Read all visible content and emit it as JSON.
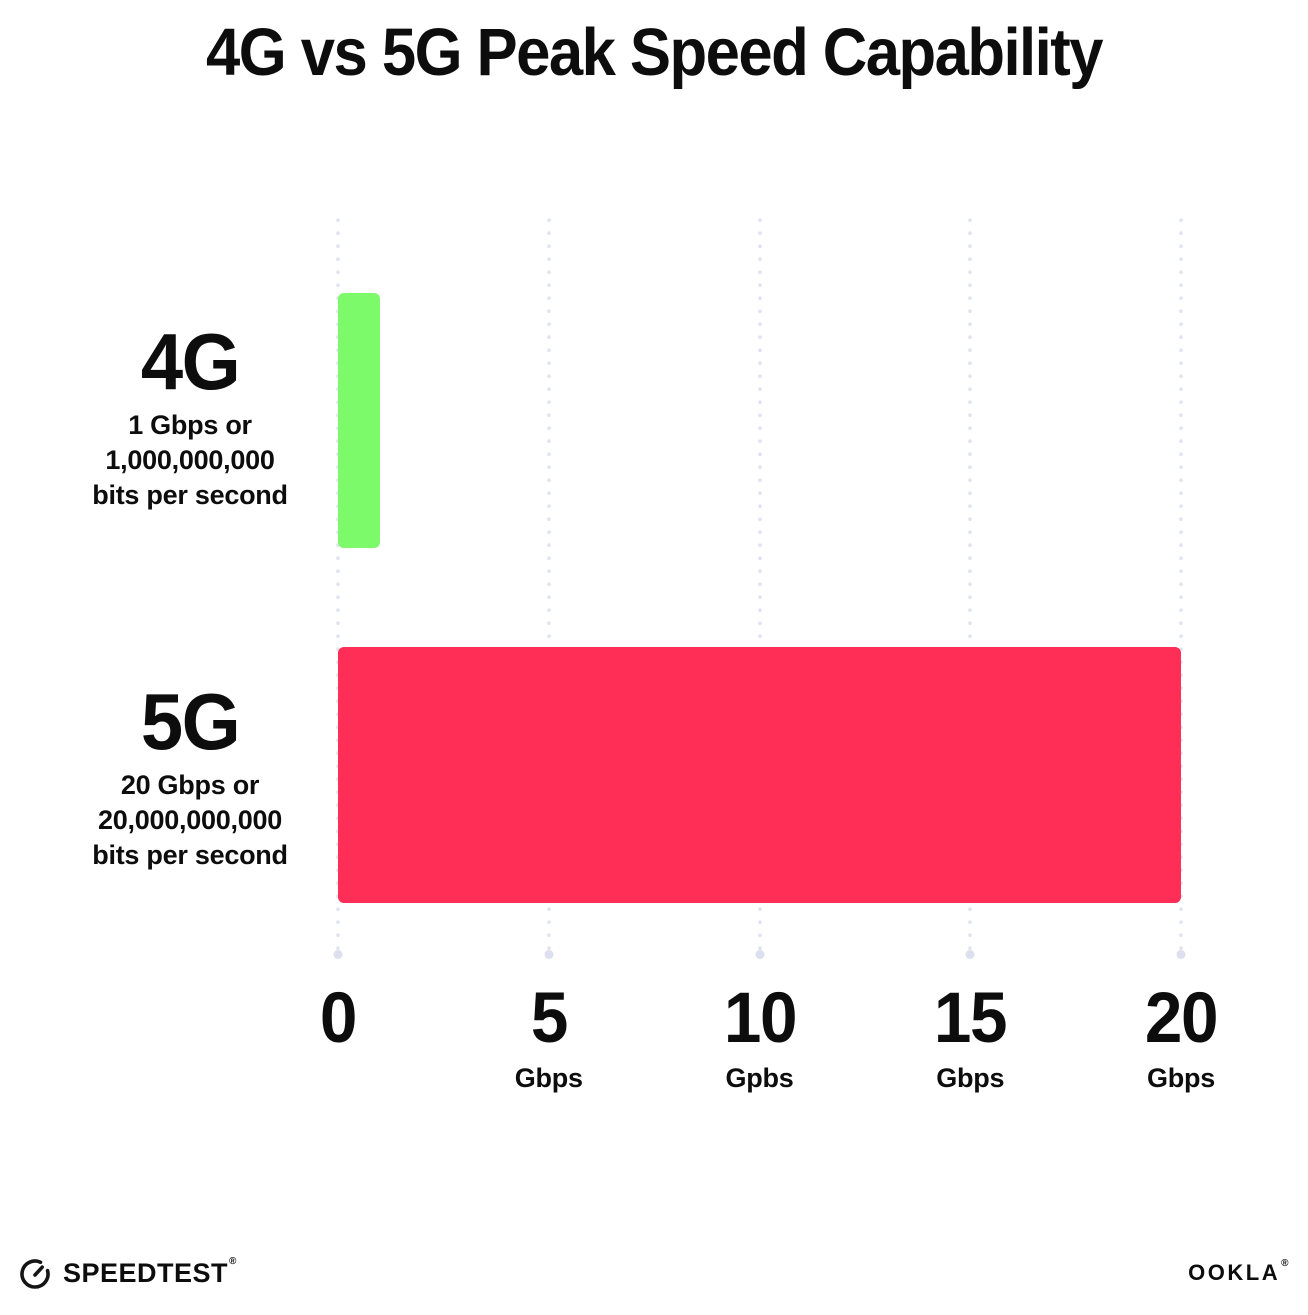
{
  "title": "4G vs 5G Peak Speed Capability",
  "chart_data": {
    "type": "bar",
    "orientation": "horizontal",
    "title": "4G vs 5G Peak Speed Capability",
    "categories": [
      "4G",
      "5G"
    ],
    "values": [
      1,
      20
    ],
    "series": [
      {
        "name": "4G",
        "value": 1,
        "color": "#7cfa69",
        "sublabel_lines": [
          "1 Gbps or",
          "1,000,000,000",
          "bits per second"
        ]
      },
      {
        "name": "5G",
        "value": 20,
        "color": "#ff2e56",
        "sublabel_lines": [
          "20 Gbps or",
          "20,000,000,000",
          "bits per second"
        ]
      }
    ],
    "xlabel": "",
    "ylabel": "",
    "xlim": [
      0,
      20
    ],
    "grid": "vertical dotted gridlines at each tick, ending in a dot",
    "legend": "none",
    "x_ticks": [
      {
        "value": 0,
        "label": "0",
        "unit": ""
      },
      {
        "value": 5,
        "label": "5",
        "unit": "Gbps"
      },
      {
        "value": 10,
        "label": "10",
        "unit": "Gpbs"
      },
      {
        "value": 15,
        "label": "15",
        "unit": "Gbps"
      },
      {
        "value": 20,
        "label": "20",
        "unit": "Gbps"
      }
    ]
  },
  "footer": {
    "speedtest_label": "SPEEDTEST",
    "speedtest_mark": "®",
    "ookla_label": "OOKLA",
    "ookla_mark": "®"
  },
  "colors": {
    "bar_4g": "#7cfa69",
    "bar_5g": "#ff2e56",
    "grid_dot": "#e2e4f0",
    "text": "#0d0d0d",
    "background": "#ffffff"
  }
}
